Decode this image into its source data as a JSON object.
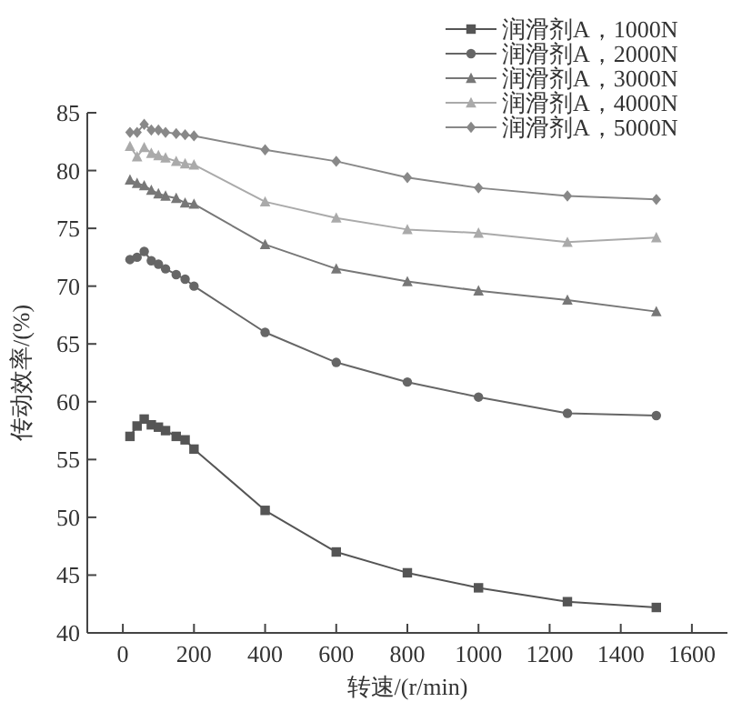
{
  "chart_data": {
    "type": "line",
    "xlabel": "转速/(r/min)",
    "ylabel": "传动效率/(%)",
    "x": [
      20,
      40,
      60,
      80,
      100,
      120,
      150,
      175,
      200,
      400,
      600,
      800,
      1000,
      1250,
      1500
    ],
    "xlim": [
      -100,
      1700
    ],
    "xticks": [
      0,
      200,
      400,
      600,
      800,
      1000,
      1200,
      1400,
      1600
    ],
    "ylim": [
      40,
      85
    ],
    "yticks": [
      40,
      45,
      50,
      55,
      60,
      65,
      70,
      75,
      80,
      85
    ],
    "grid": false,
    "legend": "top right",
    "line_style": "solid",
    "series": [
      {
        "name": "润滑剂A，1000N",
        "color": "#555555",
        "marker": "square",
        "values": [
          57.0,
          57.9,
          58.5,
          58.0,
          57.8,
          57.5,
          57.0,
          56.7,
          55.9,
          50.6,
          47.0,
          45.2,
          43.9,
          42.7,
          42.2
        ]
      },
      {
        "name": "润滑剂A，2000N",
        "color": "#666666",
        "marker": "circle",
        "values": [
          72.3,
          72.5,
          73.0,
          72.2,
          71.9,
          71.5,
          71.0,
          70.6,
          70.0,
          66.0,
          63.4,
          61.7,
          60.4,
          59.0,
          58.8
        ]
      },
      {
        "name": "润滑剂A，3000N",
        "color": "#777777",
        "marker": "triangle",
        "values": [
          79.2,
          78.9,
          78.7,
          78.3,
          78.0,
          77.8,
          77.6,
          77.2,
          77.1,
          73.6,
          71.5,
          70.4,
          69.6,
          68.8,
          67.8
        ]
      },
      {
        "name": "润滑剂A，4000N",
        "color": "#aaaaaa",
        "marker": "triangle",
        "values": [
          82.1,
          81.2,
          82.0,
          81.5,
          81.3,
          81.1,
          80.8,
          80.6,
          80.5,
          77.3,
          75.9,
          74.9,
          74.6,
          73.8,
          74.2
        ]
      },
      {
        "name": "润滑剂A，5000N",
        "color": "#888888",
        "marker": "diamond",
        "values": [
          83.3,
          83.3,
          84.0,
          83.5,
          83.5,
          83.3,
          83.2,
          83.1,
          83.0,
          81.8,
          80.8,
          79.4,
          78.5,
          77.8,
          77.5
        ]
      }
    ]
  }
}
